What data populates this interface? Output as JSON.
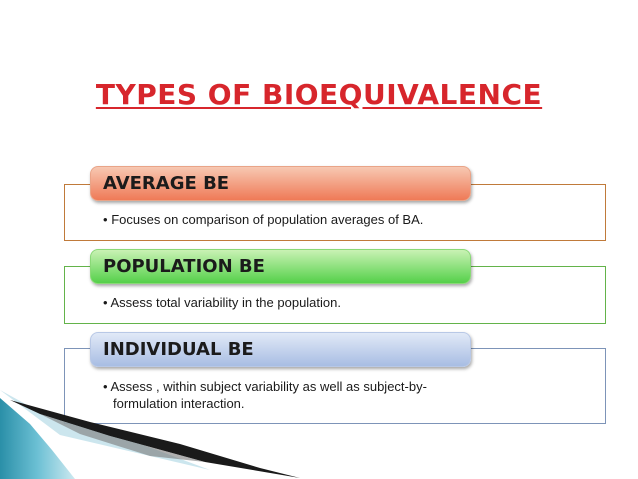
{
  "title": "TYPES OF BIOEQUIVALENCE",
  "colors": {
    "title": "#d7262c",
    "panel1_border": "#c07a3a",
    "panel2_border": "#63b34a",
    "panel3_border": "#7d94b8",
    "tab1_top": "#f7c8b2",
    "tab1_bottom": "#ef7a57",
    "tab2_top": "#c9f2b4",
    "tab2_bottom": "#55d04a",
    "tab3_top": "#e1e9f7",
    "tab3_bottom": "#a8bde3"
  },
  "items": [
    {
      "heading": "AVERAGE BE",
      "bullet": "•",
      "text": "Focuses on comparison of population averages of  BA."
    },
    {
      "heading": "POPULATION BE",
      "bullet": "•",
      "text": "Assess  total variability in the population."
    },
    {
      "heading": "INDIVIDUAL BE",
      "bullet": "•",
      "text_line1": "Assess , within subject variability as well as subject-by-",
      "text_line2": "formulation interaction."
    }
  ]
}
